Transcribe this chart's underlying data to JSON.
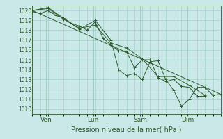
{
  "xlabel": "Pression niveau de la mer( hPa )",
  "bg_color": "#cbe8e8",
  "grid_color": "#99ccbb",
  "line_color": "#2d5a2d",
  "marker": "+",
  "ylim": [
    1009.5,
    1020.5
  ],
  "xlim": [
    0,
    96
  ],
  "yticks": [
    1010,
    1011,
    1012,
    1013,
    1014,
    1015,
    1016,
    1017,
    1018,
    1019,
    1020
  ],
  "xtick_positions": [
    7,
    31,
    55,
    79
  ],
  "xtick_labels": [
    "Ven",
    "Lun",
    "Sam",
    "Dim"
  ],
  "vlines": [
    7,
    31,
    55,
    79
  ],
  "series": [
    [
      0,
      1019.9,
      4,
      1019.7,
      8,
      1020.0,
      12,
      1019.5,
      16,
      1019.2,
      20,
      1018.7,
      24,
      1018.4,
      28,
      1018.0,
      32,
      1018.85,
      36,
      1017.2,
      40,
      1016.5,
      44,
      1015.9,
      48,
      1015.8,
      52,
      1014.2,
      56,
      1015.0,
      60,
      1015.0,
      64,
      1013.2,
      68,
      1012.8,
      72,
      1013.0,
      76,
      1012.3,
      80,
      1012.2,
      84,
      1011.3,
      88,
      1011.3
    ],
    [
      0,
      1020.0,
      8,
      1020.2,
      16,
      1019.1,
      24,
      1018.2,
      32,
      1018.5,
      40,
      1016.7,
      48,
      1016.2,
      56,
      1015.1,
      64,
      1013.3,
      72,
      1013.3,
      80,
      1012.4,
      88,
      1011.4
    ],
    [
      0,
      1020.0,
      8,
      1020.3,
      16,
      1019.2,
      24,
      1018.1,
      32,
      1019.0,
      40,
      1017.0,
      44,
      1014.0,
      48,
      1013.4,
      52,
      1013.6,
      56,
      1013.0,
      60,
      1014.8,
      64,
      1014.9,
      68,
      1013.0,
      72,
      1011.9,
      76,
      1010.3,
      80,
      1011.0,
      84,
      1012.2,
      88,
      1012.2,
      92,
      1011.4,
      96,
      1011.5
    ],
    [
      0,
      1020.0,
      96,
      1011.5
    ]
  ],
  "figsize": [
    3.2,
    2.0
  ],
  "dpi": 100
}
